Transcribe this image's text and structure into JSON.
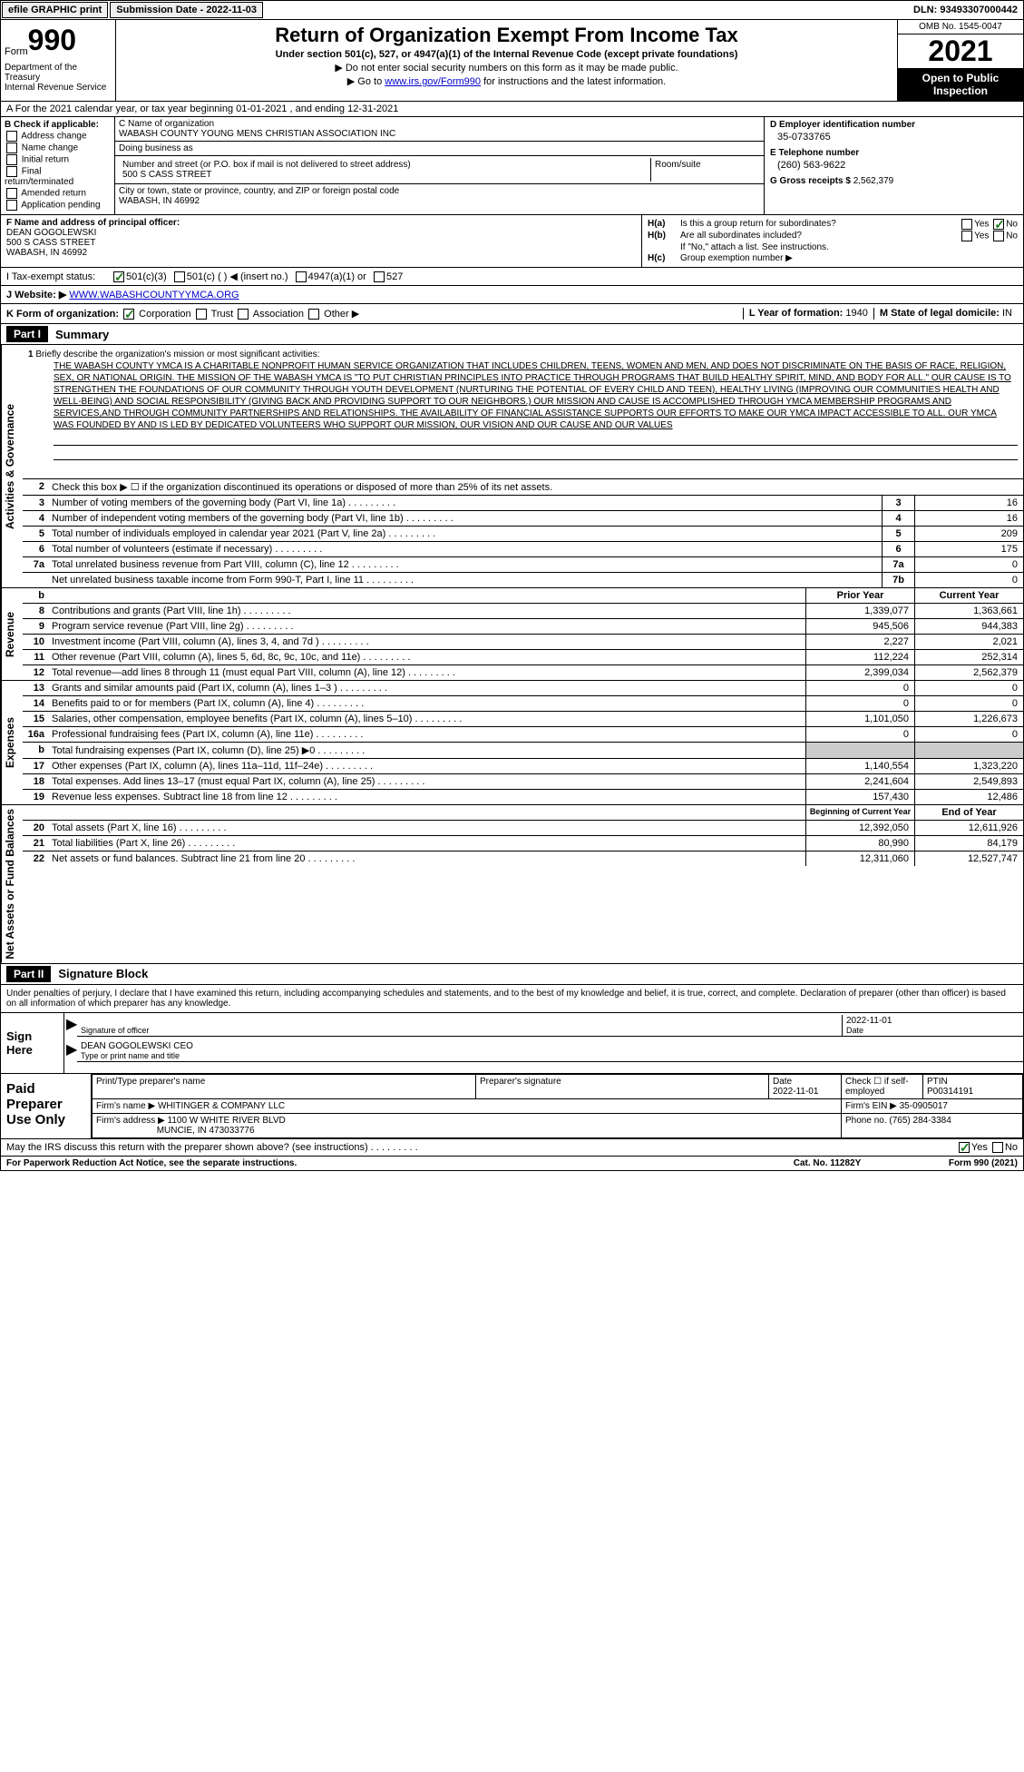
{
  "topbar": {
    "efile": "efile GRAPHIC print",
    "submission_label": "Submission Date - 2022-11-03",
    "dln": "DLN: 93493307000442"
  },
  "header": {
    "form_word": "Form",
    "form_num": "990",
    "dept": "Department of the Treasury\nInternal Revenue Service",
    "title": "Return of Organization Exempt From Income Tax",
    "subtitle": "Under section 501(c), 527, or 4947(a)(1) of the Internal Revenue Code (except private foundations)",
    "note1": "▶ Do not enter social security numbers on this form as it may be made public.",
    "note2_pre": "▶ Go to ",
    "note2_link": "www.irs.gov/Form990",
    "note2_post": " for instructions and the latest information.",
    "omb": "OMB No. 1545-0047",
    "year": "2021",
    "open": "Open to Public Inspection"
  },
  "row_a": "A For the 2021 calendar year, or tax year beginning 01-01-2021   , and ending 12-31-2021",
  "col_b": {
    "header": "B Check if applicable:",
    "items": [
      "Address change",
      "Name change",
      "Initial return",
      "Final return/terminated",
      "Amended return",
      "Application pending"
    ]
  },
  "col_c": {
    "name_label": "C Name of organization",
    "name": "WABASH COUNTY YOUNG MENS CHRISTIAN ASSOCIATION INC",
    "dba_label": "Doing business as",
    "dba": "",
    "street_label": "Number and street (or P.O. box if mail is not delivered to street address)",
    "street": "500 S CASS STREET",
    "room_label": "Room/suite",
    "room": "",
    "city_label": "City or town, state or province, country, and ZIP or foreign postal code",
    "city": "WABASH, IN  46992"
  },
  "col_d": {
    "ein_label": "D Employer identification number",
    "ein": "35-0733765",
    "phone_label": "E Telephone number",
    "phone": "(260) 563-9622",
    "gross_label": "G Gross receipts $",
    "gross": "2,562,379"
  },
  "row_f": {
    "label": "F  Name and address of principal officer:",
    "name": "DEAN GOGOLEWSKI",
    "addr1": "500 S CASS STREET",
    "addr2": "WABASH, IN  46992"
  },
  "row_h": {
    "ha": "Is this a group return for subordinates?",
    "hb": "Are all subordinates included?",
    "hb_note": "If \"No,\" attach a list. See instructions.",
    "hc": "Group exemption number ▶"
  },
  "row_i": {
    "label": "I   Tax-exempt status:",
    "opt1": "501(c)(3)",
    "opt2": "501(c) (   ) ◀ (insert no.)",
    "opt3": "4947(a)(1) or",
    "opt4": "527"
  },
  "row_j": {
    "label": "J   Website: ▶",
    "url": "WWW.WABASHCOUNTYYMCA.ORG"
  },
  "row_k": {
    "label": "K Form of organization:",
    "opts": [
      "Corporation",
      "Trust",
      "Association",
      "Other ▶"
    ],
    "l_label": "L Year of formation:",
    "l_val": "1940",
    "m_label": "M State of legal domicile:",
    "m_val": "IN"
  },
  "part1": {
    "header": "Part I",
    "title": "Summary"
  },
  "side_labels": {
    "gov": "Activities & Governance",
    "rev": "Revenue",
    "exp": "Expenses",
    "net": "Net Assets or Fund Balances"
  },
  "mission": {
    "num": "1",
    "label": "Briefly describe the organization's mission or most significant activities:",
    "text": "THE WABASH COUNTY YMCA IS A CHARITABLE NONPROFIT HUMAN SERVICE ORGANIZATION THAT INCLUDES CHILDREN, TEENS, WOMEN AND MEN, AND DOES NOT DISCRIMINATE ON THE BASIS OF RACE, RELIGION, SEX, OR NATIONAL ORIGIN. THE MISSION OF THE WABASH YMCA IS \"TO PUT CHRISTIAN PRINCIPLES INTO PRACTICE THROUGH PROGRAMS THAT BUILD HEALTHY SPIRIT, MIND, AND BODY FOR ALL.\" OUR CAUSE IS TO STRENGTHEN THE FOUNDATIONS OF OUR COMMUNITY THROUGH YOUTH DEVELOPMENT (NURTURING THE POTENTIAL OF EVERY CHILD AND TEEN), HEALTHY LIVING (IMPROVING OUR COMMUNITIES HEALTH AND WELL-BEING) AND SOCIAL RESPONSIBILITY (GIVING BACK AND PROVIDING SUPPORT TO OUR NEIGHBORS.) OUR MISSION AND CAUSE IS ACCOMPLISHED THROUGH YMCA MEMBERSHIP PROGRAMS AND SERVICES,AND THROUGH COMMUNITY PARTNERSHIPS AND RELATIONSHIPS. THE AVAILABILITY OF FINANCIAL ASSISTANCE SUPPORTS OUR EFFORTS TO MAKE OUR YMCA IMPACT ACCESSIBLE TO ALL. OUR YMCA WAS FOUNDED BY AND IS LED BY DEDICATED VOLUNTEERS WHO SUPPORT OUR MISSION, OUR VISION AND OUR CAUSE AND OUR VALUES"
  },
  "gov_rows": [
    {
      "num": "2",
      "text": "Check this box ▶ ☐ if the organization discontinued its operations or disposed of more than 25% of its net assets."
    },
    {
      "num": "3",
      "text": "Number of voting members of the governing body (Part VI, line 1a)",
      "box": "3",
      "val": "16"
    },
    {
      "num": "4",
      "text": "Number of independent voting members of the governing body (Part VI, line 1b)",
      "box": "4",
      "val": "16"
    },
    {
      "num": "5",
      "text": "Total number of individuals employed in calendar year 2021 (Part V, line 2a)",
      "box": "5",
      "val": "209"
    },
    {
      "num": "6",
      "text": "Total number of volunteers (estimate if necessary)",
      "box": "6",
      "val": "175"
    },
    {
      "num": "7a",
      "text": "Total unrelated business revenue from Part VIII, column (C), line 12",
      "box": "7a",
      "val": "0"
    },
    {
      "num": "",
      "text": "Net unrelated business taxable income from Form 990-T, Part I, line 11",
      "box": "7b",
      "val": "0"
    }
  ],
  "year_headers": {
    "prior": "Prior Year",
    "current": "Current Year"
  },
  "rev_rows": [
    {
      "num": "8",
      "text": "Contributions and grants (Part VIII, line 1h)",
      "prior": "1,339,077",
      "current": "1,363,661"
    },
    {
      "num": "9",
      "text": "Program service revenue (Part VIII, line 2g)",
      "prior": "945,506",
      "current": "944,383"
    },
    {
      "num": "10",
      "text": "Investment income (Part VIII, column (A), lines 3, 4, and 7d )",
      "prior": "2,227",
      "current": "2,021"
    },
    {
      "num": "11",
      "text": "Other revenue (Part VIII, column (A), lines 5, 6d, 8c, 9c, 10c, and 11e)",
      "prior": "112,224",
      "current": "252,314"
    },
    {
      "num": "12",
      "text": "Total revenue—add lines 8 through 11 (must equal Part VIII, column (A), line 12)",
      "prior": "2,399,034",
      "current": "2,562,379"
    }
  ],
  "exp_rows": [
    {
      "num": "13",
      "text": "Grants and similar amounts paid (Part IX, column (A), lines 1–3 )",
      "prior": "0",
      "current": "0"
    },
    {
      "num": "14",
      "text": "Benefits paid to or for members (Part IX, column (A), line 4)",
      "prior": "0",
      "current": "0"
    },
    {
      "num": "15",
      "text": "Salaries, other compensation, employee benefits (Part IX, column (A), lines 5–10)",
      "prior": "1,101,050",
      "current": "1,226,673"
    },
    {
      "num": "16a",
      "text": "Professional fundraising fees (Part IX, column (A), line 11e)",
      "prior": "0",
      "current": "0"
    },
    {
      "num": "b",
      "text": "Total fundraising expenses (Part IX, column (D), line 25) ▶0",
      "prior": "",
      "current": "",
      "shaded": true
    },
    {
      "num": "17",
      "text": "Other expenses (Part IX, column (A), lines 11a–11d, 11f–24e)",
      "prior": "1,140,554",
      "current": "1,323,220"
    },
    {
      "num": "18",
      "text": "Total expenses. Add lines 13–17 (must equal Part IX, column (A), line 25)",
      "prior": "2,241,604",
      "current": "2,549,893"
    },
    {
      "num": "19",
      "text": "Revenue less expenses. Subtract line 18 from line 12",
      "prior": "157,430",
      "current": "12,486"
    }
  ],
  "net_headers": {
    "begin": "Beginning of Current Year",
    "end": "End of Year"
  },
  "net_rows": [
    {
      "num": "20",
      "text": "Total assets (Part X, line 16)",
      "prior": "12,392,050",
      "current": "12,611,926"
    },
    {
      "num": "21",
      "text": "Total liabilities (Part X, line 26)",
      "prior": "80,990",
      "current": "84,179"
    },
    {
      "num": "22",
      "text": "Net assets or fund balances. Subtract line 21 from line 20",
      "prior": "12,311,060",
      "current": "12,527,747"
    }
  ],
  "part2": {
    "header": "Part II",
    "title": "Signature Block"
  },
  "sig": {
    "intro": "Under penalties of perjury, I declare that I have examined this return, including accompanying schedules and statements, and to the best of my knowledge and belief, it is true, correct, and complete. Declaration of preparer (other than officer) is based on all information of which preparer has any knowledge.",
    "sign_here": "Sign Here",
    "sig_officer": "Signature of officer",
    "date_label": "Date",
    "date": "2022-11-01",
    "name_title_label": "Type or print name and title",
    "name_title": "DEAN GOGOLEWSKI  CEO"
  },
  "preparer": {
    "label": "Paid Preparer Use Only",
    "print_name_label": "Print/Type preparer's name",
    "print_name": "",
    "sig_label": "Preparer's signature",
    "date_label": "Date",
    "date": "2022-11-01",
    "check_label": "Check ☐ if self-employed",
    "ptin_label": "PTIN",
    "ptin": "P00314191",
    "firm_name_label": "Firm's name    ▶",
    "firm_name": "WHITINGER & COMPANY LLC",
    "firm_ein_label": "Firm's EIN ▶",
    "firm_ein": "35-0905017",
    "firm_addr_label": "Firm's address ▶",
    "firm_addr1": "1100 W WHITE RIVER BLVD",
    "firm_addr2": "MUNCIE, IN  473033776",
    "phone_label": "Phone no.",
    "phone": "(765) 284-3384"
  },
  "discuss": "May the IRS discuss this return with the preparer shown above? (see instructions)",
  "footer": {
    "left": "For Paperwork Reduction Act Notice, see the separate instructions.",
    "mid": "Cat. No. 11282Y",
    "right": "Form 990 (2021)"
  }
}
